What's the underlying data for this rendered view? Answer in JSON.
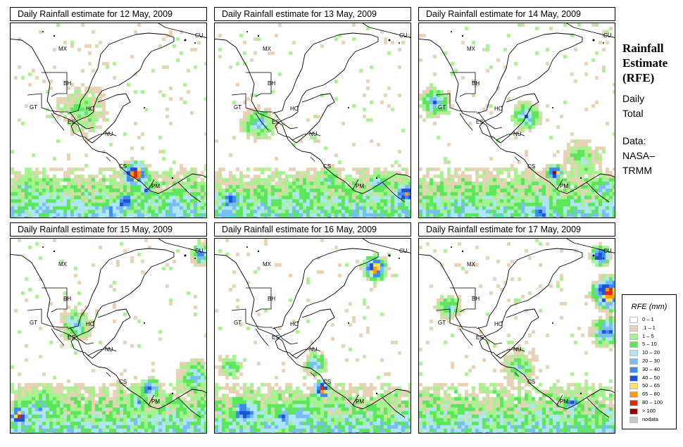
{
  "panels": [
    {
      "title": "Daily Rainfall estimate for  12 May, 2009",
      "seed": 12
    },
    {
      "title": "Daily Rainfall estimate for  13 May, 2009",
      "seed": 13
    },
    {
      "title": "Daily Rainfall estimate for  14 May, 2009",
      "seed": 14
    },
    {
      "title": "Daily Rainfall estimate for  15 May, 2009",
      "seed": 15
    },
    {
      "title": "Daily Rainfall estimate for  16 May, 2009",
      "seed": 16
    },
    {
      "title": "Daily Rainfall estimate for  17 May, 2009",
      "seed": 17
    }
  ],
  "country_labels": {
    "mx": "MX",
    "cu": "CU",
    "bh": "BH",
    "gt": "GT",
    "ho": "HO",
    "es": "ES",
    "nu": "NU",
    "cs": "CS",
    "pm": "PM"
  },
  "side": {
    "heading_line1": "Rainfall",
    "heading_line2": "Estimate",
    "heading_line3": "(RFE)",
    "sub_line1": "Daily",
    "sub_line2": "Total",
    "data_line1": "Data:",
    "data_line2": "NASA–",
    "data_line3": "TRMM"
  },
  "legend": {
    "title": "RFE (mm)",
    "items": [
      {
        "label": "0 – 1",
        "color": "#ffffff"
      },
      {
        "label": ".1 – 1",
        "color": "#e6d2b4"
      },
      {
        "label": "1 – 5",
        "color": "#a6f28e"
      },
      {
        "label": "5 – 10",
        "color": "#5ce65c"
      },
      {
        "label": "10 – 20",
        "color": "#aee6f5"
      },
      {
        "label": "20 – 30",
        "color": "#78bef5"
      },
      {
        "label": "30 – 40",
        "color": "#3c8cf0"
      },
      {
        "label": "40 – 50",
        "color": "#1e50d2"
      },
      {
        "label": "50 – 65",
        "color": "#ffe15a"
      },
      {
        "label": "65 – 80",
        "color": "#ff9a00"
      },
      {
        "label": "80 – 100",
        "color": "#e62800"
      },
      {
        "label": "> 100",
        "color": "#9b0000"
      },
      {
        "label": "nodata",
        "color": "#c8c8c8"
      }
    ]
  }
}
